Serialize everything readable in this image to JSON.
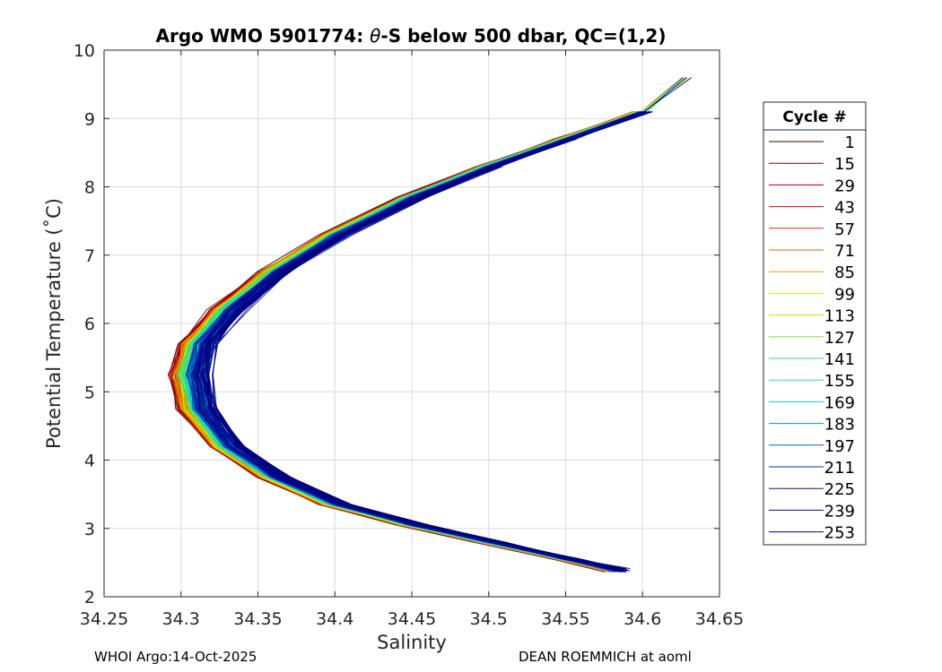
{
  "chart_data": {
    "type": "line",
    "title_prefix": "Argo WMO 5901774: ",
    "title_theta": "θ",
    "title_suffix": "-S below 500 dbar,  QC=(1,2)",
    "xlabel": "Salinity",
    "ylabel": "Potential Temperature (˚C)",
    "xlim": [
      34.25,
      34.65
    ],
    "ylim": [
      2,
      10
    ],
    "xticks": [
      34.25,
      34.3,
      34.35,
      34.4,
      34.45,
      34.5,
      34.55,
      34.6,
      34.65
    ],
    "xtick_labels": [
      "34.25",
      "34.3",
      "34.35",
      "34.4",
      "34.45",
      "34.5",
      "34.55",
      "34.6",
      "34.65"
    ],
    "yticks": [
      2,
      3,
      4,
      5,
      6,
      7,
      8,
      9,
      10
    ],
    "ytick_labels": [
      "2",
      "3",
      "4",
      "5",
      "6",
      "7",
      "8",
      "9",
      "10"
    ],
    "grid": true,
    "legend_title": "Cycle #",
    "legend_position": "right, outside",
    "legend_labels": [
      "1",
      "15",
      "29",
      "43",
      "57",
      "71",
      "85",
      "99",
      "113",
      "127",
      "141",
      "155",
      "169",
      "183",
      "197",
      "211",
      "225",
      "239",
      "253"
    ],
    "legend_colors": [
      "#3a0000",
      "#800000",
      "#a80000",
      "#c80a00",
      "#e03000",
      "#e86000",
      "#e8a000",
      "#f0e000",
      "#b0f000",
      "#70f030",
      "#30e070",
      "#20e0b0",
      "#10c8d8",
      "#0098d0",
      "#0064c8",
      "#0038b0",
      "#001ca0",
      "#000c90",
      "#000080"
    ],
    "series_template": {
      "cycles": 253,
      "profile_points": [
        {
          "s": 34.583,
          "t": 2.38
        },
        {
          "s": 34.55,
          "t": 2.55
        },
        {
          "s": 34.5,
          "t": 2.8
        },
        {
          "s": 34.45,
          "t": 3.05
        },
        {
          "s": 34.4,
          "t": 3.35
        },
        {
          "s": 34.36,
          "t": 3.75
        },
        {
          "s": 34.33,
          "t": 4.2
        },
        {
          "s": 34.31,
          "t": 4.75
        },
        {
          "s": 34.305,
          "t": 5.25
        },
        {
          "s": 34.31,
          "t": 5.7
        },
        {
          "s": 34.33,
          "t": 6.2
        },
        {
          "s": 34.36,
          "t": 6.75
        },
        {
          "s": 34.4,
          "t": 7.3
        },
        {
          "s": 34.45,
          "t": 7.85
        },
        {
          "s": 34.5,
          "t": 8.3
        },
        {
          "s": 34.55,
          "t": 8.7
        },
        {
          "s": 34.6,
          "t": 9.1
        },
        {
          "s": 34.628,
          "t": 9.6
        }
      ]
    }
  },
  "footer": {
    "left": "WHOI Argo:14-Oct-2025",
    "right": "DEAN ROEMMICH at aoml"
  }
}
